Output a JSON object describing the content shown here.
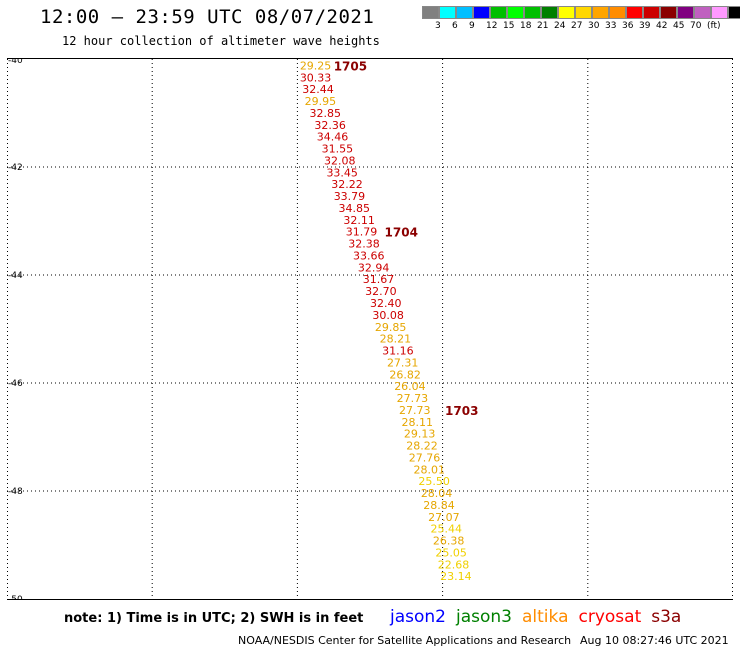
{
  "header": {
    "title": "12:00 — 23:59 UTC 08/07/2021",
    "subtitle": "12 hour collection of altimeter wave heights"
  },
  "legend": {
    "colors": [
      "#808080",
      "#00ffff",
      "#00bfff",
      "#0000ff",
      "#00bf00",
      "#00ff00",
      "#00bf00",
      "#008000",
      "#ffff00",
      "#ffd700",
      "#ffa500",
      "#ff8c00",
      "#ff0000",
      "#cc0000",
      "#8b0000",
      "#800080",
      "#c060c0",
      "#ff99ff",
      "#000000"
    ],
    "labels": [
      "3",
      "6",
      "9",
      "12",
      "15",
      "18",
      "21",
      "24",
      "27",
      "30",
      "33",
      "36",
      "39",
      "42",
      "45",
      "70",
      "(ft)"
    ]
  },
  "map": {
    "lon_range": [
      75,
      90
    ],
    "lat_range": [
      -40,
      -50
    ],
    "x_ticks": [
      "75",
      "78",
      "81",
      "84",
      "87",
      "90"
    ],
    "y_ticks": [
      "-40",
      "-42",
      "-44",
      "-46",
      "-48",
      "-50"
    ],
    "grid": "dotted"
  },
  "observations": [
    {
      "v": "29.25",
      "c": "#e6a600",
      "lon": 81.05,
      "lat": -40.1
    },
    {
      "v": "30.33",
      "c": "#cc0000",
      "lon": 81.05,
      "lat": -40.32
    },
    {
      "v": "32.44",
      "c": "#cc0000",
      "lon": 81.1,
      "lat": -40.54
    },
    {
      "v": "29.95",
      "c": "#e6a600",
      "lon": 81.15,
      "lat": -40.76
    },
    {
      "v": "32.85",
      "c": "#cc0000",
      "lon": 81.25,
      "lat": -40.98
    },
    {
      "v": "32.36",
      "c": "#cc0000",
      "lon": 81.35,
      "lat": -41.2
    },
    {
      "v": "34.46",
      "c": "#cc0000",
      "lon": 81.4,
      "lat": -41.42
    },
    {
      "v": "31.55",
      "c": "#cc0000",
      "lon": 81.5,
      "lat": -41.64
    },
    {
      "v": "32.08",
      "c": "#cc0000",
      "lon": 81.55,
      "lat": -41.86
    },
    {
      "v": "33.45",
      "c": "#cc0000",
      "lon": 81.6,
      "lat": -42.08
    },
    {
      "v": "32.22",
      "c": "#cc0000",
      "lon": 81.7,
      "lat": -42.3
    },
    {
      "v": "33.79",
      "c": "#cc0000",
      "lon": 81.75,
      "lat": -42.52
    },
    {
      "v": "34.85",
      "c": "#cc0000",
      "lon": 81.85,
      "lat": -42.74
    },
    {
      "v": "32.11",
      "c": "#cc0000",
      "lon": 81.95,
      "lat": -42.96
    },
    {
      "v": "31.79",
      "c": "#cc0000",
      "lon": 82.0,
      "lat": -43.18
    },
    {
      "v": "32.38",
      "c": "#cc0000",
      "lon": 82.05,
      "lat": -43.4
    },
    {
      "v": "33.66",
      "c": "#cc0000",
      "lon": 82.15,
      "lat": -43.62
    },
    {
      "v": "32.94",
      "c": "#cc0000",
      "lon": 82.25,
      "lat": -43.84
    },
    {
      "v": "31.67",
      "c": "#cc0000",
      "lon": 82.35,
      "lat": -44.06
    },
    {
      "v": "32.70",
      "c": "#cc0000",
      "lon": 82.4,
      "lat": -44.28
    },
    {
      "v": "32.40",
      "c": "#cc0000",
      "lon": 82.5,
      "lat": -44.5
    },
    {
      "v": "30.08",
      "c": "#cc0000",
      "lon": 82.55,
      "lat": -44.72
    },
    {
      "v": "29.85",
      "c": "#e6a600",
      "lon": 82.6,
      "lat": -44.94
    },
    {
      "v": "28.21",
      "c": "#e6a600",
      "lon": 82.7,
      "lat": -45.16
    },
    {
      "v": "31.16",
      "c": "#cc0000",
      "lon": 82.75,
      "lat": -45.38
    },
    {
      "v": "27.31",
      "c": "#e6a600",
      "lon": 82.85,
      "lat": -45.6
    },
    {
      "v": "26.82",
      "c": "#e6a600",
      "lon": 82.9,
      "lat": -45.82
    },
    {
      "v": "26.04",
      "c": "#e6a600",
      "lon": 83.0,
      "lat": -46.04
    },
    {
      "v": "27.73",
      "c": "#e6a600",
      "lon": 83.05,
      "lat": -46.26
    },
    {
      "v": "27.73",
      "c": "#e6a600",
      "lon": 83.1,
      "lat": -46.48
    },
    {
      "v": "28.11",
      "c": "#e6a600",
      "lon": 83.15,
      "lat": -46.7
    },
    {
      "v": "29.13",
      "c": "#e6a600",
      "lon": 83.2,
      "lat": -46.92
    },
    {
      "v": "28.22",
      "c": "#e6a600",
      "lon": 83.25,
      "lat": -47.14
    },
    {
      "v": "27.76",
      "c": "#e6a600",
      "lon": 83.3,
      "lat": -47.36
    },
    {
      "v": "28.01",
      "c": "#e6a600",
      "lon": 83.4,
      "lat": -47.58
    },
    {
      "v": "25.50",
      "c": "#f0d000",
      "lon": 83.5,
      "lat": -47.8
    },
    {
      "v": "28.04",
      "c": "#e6a600",
      "lon": 83.55,
      "lat": -48.02
    },
    {
      "v": "28.84",
      "c": "#e6a600",
      "lon": 83.6,
      "lat": -48.24
    },
    {
      "v": "27.07",
      "c": "#e6a600",
      "lon": 83.7,
      "lat": -48.46
    },
    {
      "v": "25.44",
      "c": "#f0d000",
      "lon": 83.75,
      "lat": -48.68
    },
    {
      "v": "26.38",
      "c": "#e6a600",
      "lon": 83.8,
      "lat": -48.9
    },
    {
      "v": "25.05",
      "c": "#f0d000",
      "lon": 83.85,
      "lat": -49.12
    },
    {
      "v": "22.68",
      "c": "#f0d000",
      "lon": 83.9,
      "lat": -49.34
    },
    {
      "v": "23.14",
      "c": "#f0d000",
      "lon": 83.95,
      "lat": -49.56
    }
  ],
  "passes": [
    {
      "id": "1705",
      "color": "#8b0000",
      "lon": 81.75,
      "lat": -40.1
    },
    {
      "id": "1704",
      "color": "#8b0000",
      "lon": 82.8,
      "lat": -43.18
    },
    {
      "id": "1703",
      "color": "#8b0000",
      "lon": 84.05,
      "lat": -46.48
    }
  ],
  "footer": {
    "note": "note:  1) Time is in UTC;  2) SWH is in feet",
    "satellites": [
      {
        "name": "jason2",
        "color": "#0000ff"
      },
      {
        "name": "jason3",
        "color": "#008000"
      },
      {
        "name": "altika",
        "color": "#ff8c00"
      },
      {
        "name": "cryosat",
        "color": "#ff0000"
      },
      {
        "name": "s3a",
        "color": "#8b0000"
      }
    ],
    "credit": "NOAA/NESDIS Center for Satellite Applications and Research",
    "timestamp": "Aug 10 08:27:46 UTC 2021"
  }
}
